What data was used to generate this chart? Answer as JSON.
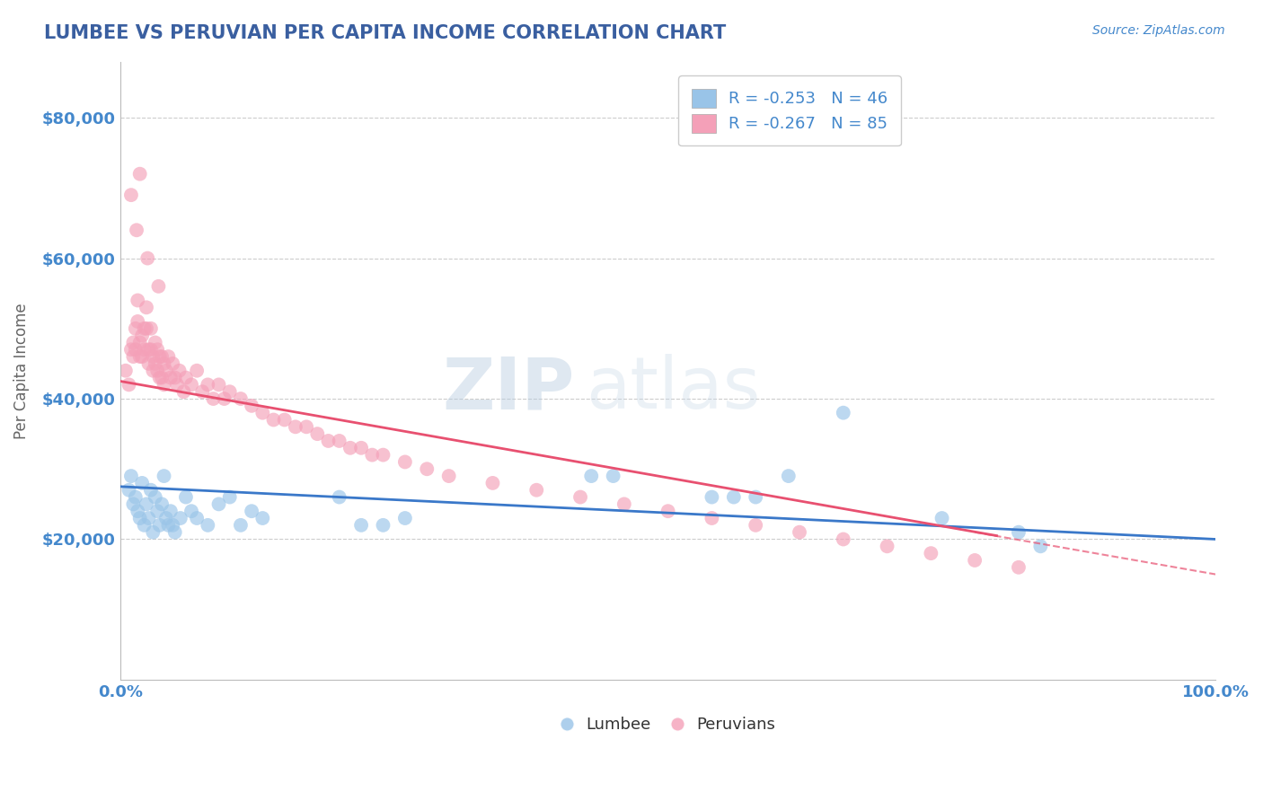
{
  "title": "LUMBEE VS PERUVIAN PER CAPITA INCOME CORRELATION CHART",
  "source_text": "Source: ZipAtlas.com",
  "ylabel": "Per Capita Income",
  "xlim": [
    0.0,
    1.0
  ],
  "ylim": [
    0,
    88000
  ],
  "yticks": [
    0,
    20000,
    40000,
    60000,
    80000
  ],
  "ytick_labels": [
    "",
    "$20,000",
    "$40,000",
    "$60,000",
    "$80,000"
  ],
  "xtick_labels": [
    "0.0%",
    "100.0%"
  ],
  "legend_entries": [
    {
      "label": "R = -0.253   N = 46"
    },
    {
      "label": "R = -0.267   N = 85"
    }
  ],
  "lumbee_legend": "Lumbee",
  "peruvian_legend": "Peruvians",
  "lumbee_scatter_color": "#99c4e8",
  "peruvian_scatter_color": "#f4a0b8",
  "trend_lumbee_color": "#3a78c9",
  "trend_peruvian_color": "#e85070",
  "background_color": "#ffffff",
  "grid_color": "#cccccc",
  "title_color": "#3a5fa0",
  "axis_label_color": "#666666",
  "tick_label_color": "#4488cc",
  "watermark_zip": "ZIP",
  "watermark_atlas": "atlas",
  "lumbee_x": [
    0.008,
    0.01,
    0.012,
    0.014,
    0.016,
    0.018,
    0.02,
    0.022,
    0.024,
    0.026,
    0.028,
    0.03,
    0.032,
    0.034,
    0.036,
    0.038,
    0.04,
    0.042,
    0.044,
    0.046,
    0.048,
    0.05,
    0.055,
    0.06,
    0.065,
    0.07,
    0.08,
    0.09,
    0.1,
    0.11,
    0.12,
    0.13,
    0.2,
    0.22,
    0.24,
    0.26,
    0.43,
    0.45,
    0.54,
    0.56,
    0.58,
    0.61,
    0.66,
    0.75,
    0.82,
    0.84
  ],
  "lumbee_y": [
    27000,
    29000,
    25000,
    26000,
    24000,
    23000,
    28000,
    22000,
    25000,
    23000,
    27000,
    21000,
    26000,
    24000,
    22000,
    25000,
    29000,
    23000,
    22000,
    24000,
    22000,
    21000,
    23000,
    26000,
    24000,
    23000,
    22000,
    25000,
    26000,
    22000,
    24000,
    23000,
    26000,
    22000,
    22000,
    23000,
    29000,
    29000,
    26000,
    26000,
    26000,
    29000,
    38000,
    23000,
    21000,
    19000
  ],
  "peruvian_x": [
    0.005,
    0.008,
    0.01,
    0.012,
    0.012,
    0.014,
    0.014,
    0.016,
    0.016,
    0.018,
    0.018,
    0.02,
    0.02,
    0.022,
    0.022,
    0.024,
    0.024,
    0.026,
    0.026,
    0.028,
    0.028,
    0.03,
    0.03,
    0.032,
    0.032,
    0.034,
    0.034,
    0.036,
    0.036,
    0.038,
    0.038,
    0.04,
    0.04,
    0.042,
    0.044,
    0.046,
    0.048,
    0.05,
    0.052,
    0.054,
    0.058,
    0.06,
    0.065,
    0.07,
    0.075,
    0.08,
    0.085,
    0.09,
    0.095,
    0.1,
    0.11,
    0.12,
    0.13,
    0.14,
    0.15,
    0.16,
    0.17,
    0.18,
    0.19,
    0.2,
    0.21,
    0.22,
    0.23,
    0.24,
    0.26,
    0.28,
    0.3,
    0.34,
    0.38,
    0.42,
    0.46,
    0.5,
    0.54,
    0.58,
    0.62,
    0.66,
    0.7,
    0.74,
    0.78,
    0.82,
    0.01,
    0.015,
    0.018,
    0.025,
    0.035
  ],
  "peruvian_y": [
    44000,
    42000,
    47000,
    46000,
    48000,
    50000,
    47000,
    54000,
    51000,
    46000,
    48000,
    46000,
    49000,
    50000,
    47000,
    53000,
    50000,
    47000,
    45000,
    50000,
    47000,
    46000,
    44000,
    48000,
    45000,
    47000,
    44000,
    46000,
    43000,
    46000,
    43000,
    45000,
    42000,
    44000,
    46000,
    43000,
    45000,
    43000,
    42000,
    44000,
    41000,
    43000,
    42000,
    44000,
    41000,
    42000,
    40000,
    42000,
    40000,
    41000,
    40000,
    39000,
    38000,
    37000,
    37000,
    36000,
    36000,
    35000,
    34000,
    34000,
    33000,
    33000,
    32000,
    32000,
    31000,
    30000,
    29000,
    28000,
    27000,
    26000,
    25000,
    24000,
    23000,
    22000,
    21000,
    20000,
    19000,
    18000,
    17000,
    16000,
    69000,
    64000,
    72000,
    60000,
    56000
  ],
  "trend_lumbee_x0": 0.0,
  "trend_lumbee_x1": 1.0,
  "trend_lumbee_y0": 27500,
  "trend_lumbee_y1": 20000,
  "trend_peruvian_x0": 0.0,
  "trend_peruvian_x1": 0.8,
  "trend_peruvian_y0": 42500,
  "trend_peruvian_y1": 20500,
  "trend_peruvian_dash_x0": 0.78,
  "trend_peruvian_dash_x1": 1.0,
  "trend_peruvian_dash_y0": 21000,
  "trend_peruvian_dash_y1": 15000
}
